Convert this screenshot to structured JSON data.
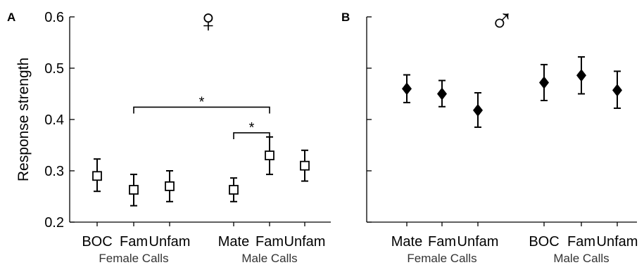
{
  "chart_data": [
    {
      "panel": "A",
      "type": "scatter",
      "marker": "open-square",
      "symbol": "♀",
      "ylabel": "Response strength",
      "ylim": [
        0.2,
        0.6
      ],
      "yticks": [
        "0.2",
        "0.3",
        "0.4",
        "0.5",
        "0.6"
      ],
      "groups": [
        {
          "name": "Female Calls",
          "categories": [
            "BOC",
            "Fam",
            "Unfam"
          ]
        },
        {
          "name": "Male Calls",
          "categories": [
            "Mate",
            "Fam",
            "Unfam"
          ]
        }
      ],
      "points": [
        {
          "category": "BOC",
          "group": "Female Calls",
          "value": 0.29,
          "err_low": 0.26,
          "err_high": 0.323
        },
        {
          "category": "Fam",
          "group": "Female Calls",
          "value": 0.263,
          "err_low": 0.232,
          "err_high": 0.293
        },
        {
          "category": "Unfam",
          "group": "Female Calls",
          "value": 0.27,
          "err_low": 0.24,
          "err_high": 0.3
        },
        {
          "category": "Mate",
          "group": "Male Calls",
          "value": 0.263,
          "err_low": 0.24,
          "err_high": 0.286
        },
        {
          "category": "Fam",
          "group": "Male Calls",
          "value": 0.33,
          "err_low": 0.293,
          "err_high": 0.366
        },
        {
          "category": "Unfam",
          "group": "Male Calls",
          "value": 0.31,
          "err_low": 0.28,
          "err_high": 0.34
        }
      ],
      "significance": [
        {
          "from": 1,
          "to": 4,
          "label": "*",
          "level": 0.424
        },
        {
          "from": 3,
          "to": 4,
          "label": "*",
          "level": 0.374
        }
      ]
    },
    {
      "panel": "B",
      "type": "scatter",
      "marker": "filled-diamond",
      "symbol": "♂",
      "ylim": [
        0.2,
        0.6
      ],
      "show_ytick_labels": false,
      "groups": [
        {
          "name": "Female Calls",
          "categories": [
            "Mate",
            "Fam",
            "Unfam"
          ]
        },
        {
          "name": "Male Calls",
          "categories": [
            "BOC",
            "Fam",
            "Unfam"
          ]
        }
      ],
      "points": [
        {
          "category": "Mate",
          "group": "Female Calls",
          "value": 0.46,
          "err_low": 0.433,
          "err_high": 0.487
        },
        {
          "category": "Fam",
          "group": "Female Calls",
          "value": 0.45,
          "err_low": 0.425,
          "err_high": 0.476
        },
        {
          "category": "Unfam",
          "group": "Female Calls",
          "value": 0.418,
          "err_low": 0.385,
          "err_high": 0.452
        },
        {
          "category": "BOC",
          "group": "Male Calls",
          "value": 0.472,
          "err_low": 0.437,
          "err_high": 0.507
        },
        {
          "category": "Fam",
          "group": "Male Calls",
          "value": 0.486,
          "err_low": 0.45,
          "err_high": 0.522
        },
        {
          "category": "Unfam",
          "group": "Male Calls",
          "value": 0.457,
          "err_low": 0.422,
          "err_high": 0.494
        }
      ]
    }
  ]
}
